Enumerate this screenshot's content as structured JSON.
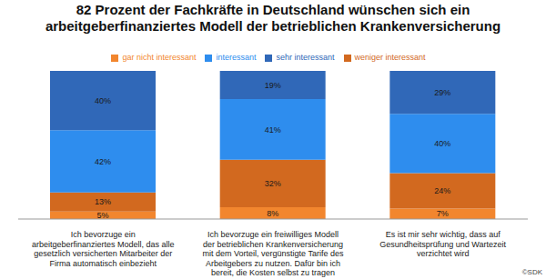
{
  "chart_data": {
    "type": "bar",
    "title": "82 Prozent der Fachkräfte in Deutschland wünschen sich ein arbeitgeberfinanziertes Modell der betrieblichen Krankenversicherung",
    "footnote": "©SDK",
    "categories": [
      "Ich bevorzuge ein arbeitgeberfinanziertes Modell, das alle gesetzlich versicherten Mitarbeiter der Firma automatisch einbezieht",
      "Ich bevorzuge ein freiwilliges Modell der betrieblichen Krankenversicherung mit dem Vorteil, vergünstigte Tarife des Arbeitgebers zu nutzen. Dafür bin ich bereit, die Kosten selbst zu tragen",
      "Es ist mir sehr wichtig, dass auf Gesundheitsprüfung und Wartezeit verzichtet wird"
    ],
    "series": [
      {
        "name": "gar nicht interessant",
        "color": "#F2862E",
        "values": [
          5,
          8,
          7
        ],
        "value_labels": [
          "5%",
          "8%",
          "7%"
        ]
      },
      {
        "name": "weniger interessant",
        "color": "#D2691F",
        "values": [
          13,
          32,
          24
        ],
        "value_labels": [
          "13%",
          "32%",
          "24%"
        ]
      },
      {
        "name": "interessant",
        "color": "#2E8DEE",
        "values": [
          42,
          41,
          40
        ],
        "value_labels": [
          "42%",
          "41%",
          "40%"
        ]
      },
      {
        "name": "sehr interessant",
        "color": "#3068B8",
        "values": [
          40,
          19,
          29
        ],
        "value_labels": [
          "40%",
          "19%",
          "29%"
        ]
      }
    ],
    "ylim": [
      0,
      100
    ],
    "stacked": true,
    "data_labels": true,
    "tick_labels": "x",
    "legend": "top"
  }
}
